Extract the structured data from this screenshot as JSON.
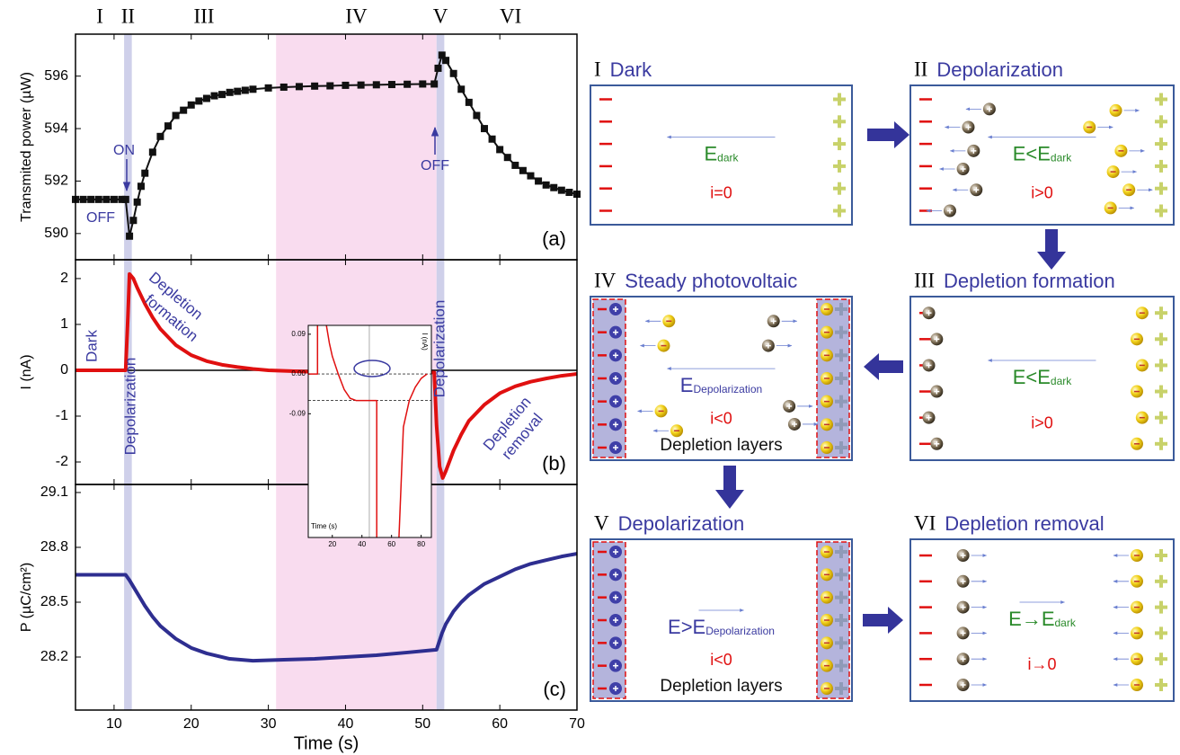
{
  "chart_data": [
    {
      "type": "line",
      "marker": "square",
      "color": "#111111",
      "ylabel": "Transmited power (µW)",
      "x": [
        5,
        6,
        7,
        8,
        9,
        10,
        11,
        11.5,
        12,
        12.5,
        13,
        13.5,
        14,
        15,
        16,
        17,
        18,
        19,
        20,
        21,
        22,
        23,
        24,
        25,
        26,
        27,
        28,
        30,
        32,
        34,
        36,
        38,
        40,
        42,
        44,
        46,
        48,
        50,
        51.5,
        52,
        52.5,
        53,
        54,
        55,
        56,
        57,
        58,
        59,
        60,
        61,
        62,
        63,
        64,
        65,
        66,
        67,
        68,
        69,
        70
      ],
      "values": [
        591.3,
        591.3,
        591.3,
        591.3,
        591.3,
        591.3,
        591.3,
        591.3,
        589.9,
        590.5,
        591.2,
        591.8,
        592.3,
        593.1,
        593.7,
        594.1,
        594.5,
        594.7,
        594.9,
        595.05,
        595.15,
        595.25,
        595.3,
        595.38,
        595.42,
        595.46,
        595.5,
        595.55,
        595.58,
        595.6,
        595.62,
        595.63,
        595.65,
        595.66,
        595.67,
        595.68,
        595.69,
        595.7,
        595.7,
        596.3,
        596.8,
        596.6,
        596.1,
        595.5,
        595.0,
        594.5,
        594.0,
        593.6,
        593.2,
        592.9,
        592.6,
        592.4,
        592.2,
        592.0,
        591.85,
        591.75,
        591.65,
        591.57,
        591.5
      ],
      "ylim": [
        589,
        597.6
      ],
      "yticks": [
        590,
        592,
        594,
        596
      ],
      "annotations": [
        [
          "ON"
        ],
        [
          "OFF"
        ],
        [
          "OFF"
        ]
      ],
      "panel_label": "(a)"
    },
    {
      "type": "line",
      "color": "#e01010",
      "zero_line": true,
      "ylabel": "I (nA)",
      "x": [
        5,
        11,
        11.5,
        11.8,
        12,
        12.5,
        13,
        14,
        15,
        16,
        18,
        20,
        22,
        24,
        26,
        28,
        30,
        35,
        40,
        45,
        50,
        51.5,
        51.8,
        52.2,
        52.6,
        53,
        54,
        55,
        56,
        58,
        60,
        62,
        64,
        66,
        68,
        70
      ],
      "values": [
        0,
        0,
        0,
        1.2,
        2.1,
        2.0,
        1.8,
        1.45,
        1.15,
        0.9,
        0.55,
        0.33,
        0.2,
        0.12,
        0.07,
        0.03,
        0,
        -0.03,
        -0.03,
        -0.03,
        -0.04,
        -0.05,
        -1.2,
        -2.1,
        -2.35,
        -2.2,
        -1.75,
        -1.4,
        -1.1,
        -0.75,
        -0.5,
        -0.35,
        -0.25,
        -0.18,
        -0.12,
        -0.08
      ],
      "ylim": [
        -2.49,
        2.41
      ],
      "yticks": [
        2,
        1,
        0,
        -1,
        -2
      ],
      "annotations": [
        [
          "Dark"
        ],
        [
          "Depolarization"
        ],
        [
          "Depletion",
          "formation"
        ],
        [
          "Steady",
          "photovoltaic"
        ],
        [
          "Depolarization"
        ],
        [
          "Depletion",
          "removal"
        ]
      ],
      "panel_label": "(b)"
    },
    {
      "type": "line",
      "color": "#2e2e90",
      "ylabel": "P (µC/cm²)",
      "xlabel": "Time (s)",
      "x": [
        5,
        11.5,
        12,
        13,
        14,
        15,
        16,
        18,
        20,
        22,
        25,
        28,
        32,
        36,
        40,
        44,
        48,
        51.8,
        52.5,
        53,
        54,
        55,
        56,
        58,
        60,
        62,
        64,
        66,
        68,
        70
      ],
      "values": [
        28.65,
        28.65,
        28.62,
        28.55,
        28.48,
        28.42,
        28.37,
        28.3,
        28.25,
        28.22,
        28.19,
        28.18,
        28.185,
        28.19,
        28.2,
        28.21,
        28.225,
        28.24,
        28.33,
        28.38,
        28.45,
        28.5,
        28.54,
        28.6,
        28.64,
        28.68,
        28.71,
        28.73,
        28.75,
        28.765
      ],
      "xlim": [
        5,
        70
      ],
      "xticks": [
        10,
        20,
        30,
        40,
        50,
        60,
        70
      ],
      "ylim": [
        27.91,
        29.144
      ],
      "yticks": [
        29.1,
        28.8,
        28.5,
        28.2
      ],
      "panel_label": "(c)"
    },
    {
      "type": "line",
      "color": "#e01010",
      "xlabel": "Time (s)",
      "ylabel": "I (nA)",
      "x": [
        4,
        10,
        10,
        13,
        16,
        18,
        20,
        24,
        28,
        32,
        36,
        40,
        44,
        48,
        50,
        50,
        60,
        65,
        68,
        72,
        76,
        80,
        84
      ],
      "values": [
        0,
        0,
        0.11,
        null,
        0.11,
        0.07,
        0.04,
        0,
        -0.035,
        -0.055,
        -0.06,
        -0.06,
        -0.06,
        -0.06,
        -0.06,
        -0.37,
        null,
        -0.37,
        -0.12,
        -0.06,
        -0.03,
        -0.01,
        0
      ],
      "xlim": [
        3.75,
        86.9
      ],
      "xticks": [
        20,
        40,
        60,
        80
      ],
      "ylim": [
        -0.37,
        0.11
      ],
      "yticks": [
        0.09,
        {
          "value": 0,
          "label": "0.00"
        },
        -0.09
      ],
      "hlines": [
        0,
        -0.06
      ],
      "vlines": [
        45
      ]
    }
  ],
  "shading": {
    "phases": [
      "I",
      "II",
      "III",
      "IV",
      "V",
      "VI"
    ],
    "bands": [
      {
        "from": 11.3,
        "to": 12.3,
        "color": "#cfd0ea"
      },
      {
        "from": 31,
        "to": 51.8,
        "color": "#f9dcef"
      },
      {
        "from": 51.8,
        "to": 52.8,
        "color": "#cfd0ea"
      }
    ]
  },
  "diagram": {
    "panels": [
      {
        "numeral": "I",
        "title": "Dark",
        "field": "E",
        "field_sub": "dark",
        "current": "i=0"
      },
      {
        "numeral": "II",
        "title": "Depolarization",
        "field": "E<E",
        "field_sub": "dark",
        "current": "i>0"
      },
      {
        "numeral": "III",
        "title": "Depletion formation",
        "field": "E<E",
        "field_sub": "dark",
        "current": "i>0"
      },
      {
        "numeral": "IV",
        "title": "Steady photovoltaic",
        "field": "E",
        "field_sub": "Depolarization",
        "current": "i<0",
        "layers": "Depletion layers"
      },
      {
        "numeral": "V",
        "title": "Depolarization",
        "field": "E>E",
        "field_sub": "Depolarization",
        "current": "i<0",
        "layers": "Depletion layers"
      },
      {
        "numeral": "VI",
        "title": "Depletion removal",
        "field": "E→E",
        "field_sub": "dark",
        "current": "i→0"
      }
    ]
  }
}
